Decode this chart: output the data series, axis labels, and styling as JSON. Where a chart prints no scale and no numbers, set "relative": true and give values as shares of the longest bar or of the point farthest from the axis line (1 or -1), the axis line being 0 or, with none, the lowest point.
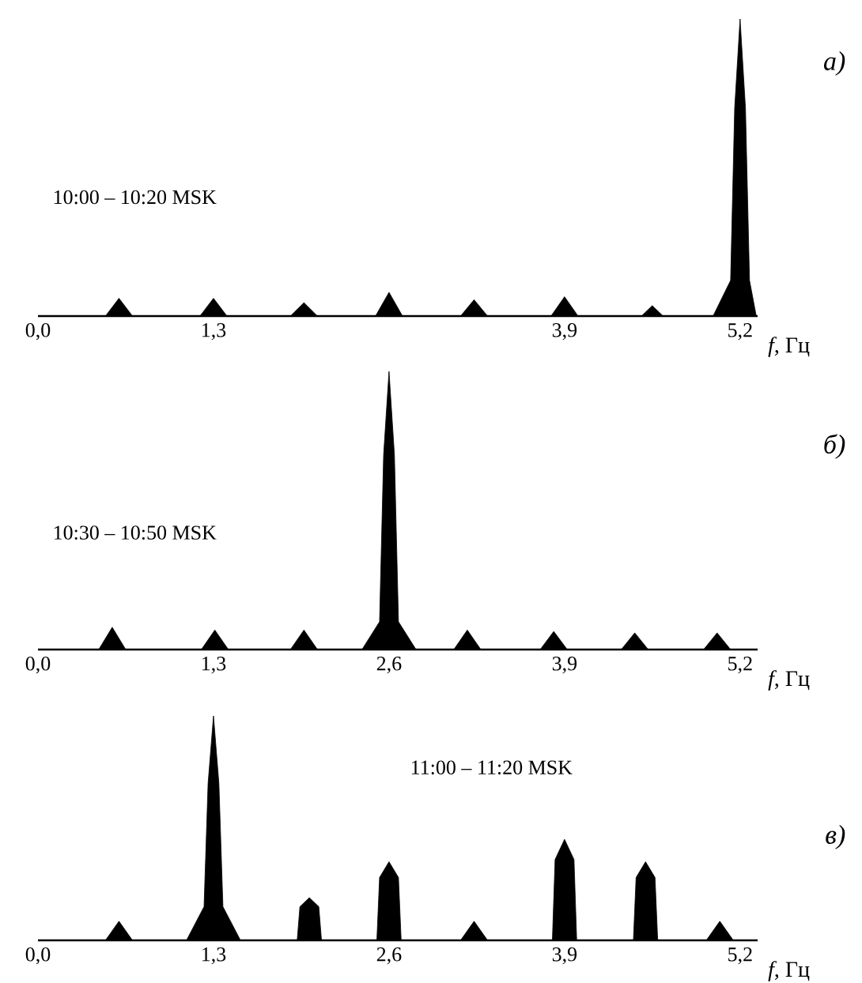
{
  "chart_data": [
    {
      "type": "area",
      "xlabel": "*f*, Гц",
      "annotations": [
        "10:00 – 10:20 MSK",
        "*а)*"
      ],
      "color": "#000000",
      "relative": true,
      "xlim": [
        0,
        5.33
      ],
      "xticks": [
        {
          "value": 0,
          "label": "0,0"
        },
        {
          "value": 1.3,
          "label": "1,3"
        },
        {
          "value": 3.9,
          "label": "3,9"
        },
        {
          "value": 5.2,
          "label": "5,2"
        }
      ],
      "x": [
        0,
        0.5,
        0.6,
        0.7,
        1.2,
        1.3,
        1.4,
        1.87,
        1.97,
        2.07,
        2.5,
        2.6,
        2.7,
        3.13,
        3.23,
        3.33,
        3.8,
        3.9,
        4.0,
        4.47,
        4.55,
        4.63,
        5.0,
        5.13,
        5.16,
        5.2,
        5.24,
        5.27,
        5.32
      ],
      "values": [
        0,
        0,
        0.06,
        0,
        0,
        0.06,
        0,
        0,
        0.045,
        0,
        0,
        0.08,
        0,
        0,
        0.055,
        0,
        0,
        0.065,
        0,
        0,
        0.035,
        0,
        0,
        0.12,
        0.7,
        1,
        0.7,
        0.12,
        0
      ]
    },
    {
      "type": "area",
      "xlabel": "*f*, Гц",
      "annotations": [
        "10:30 – 10:50 MSK",
        "*б)*"
      ],
      "color": "#000000",
      "relative": true,
      "xlim": [
        0,
        5.33
      ],
      "xticks": [
        {
          "value": 0,
          "label": "0,0"
        },
        {
          "value": 1.3,
          "label": "1,3"
        },
        {
          "value": 2.6,
          "label": "2,6"
        },
        {
          "value": 3.9,
          "label": "3,9"
        },
        {
          "value": 5.2,
          "label": "5,2"
        }
      ],
      "x": [
        0,
        0.45,
        0.55,
        0.65,
        1.21,
        1.31,
        1.41,
        1.87,
        1.97,
        2.07,
        2.4,
        2.53,
        2.56,
        2.6,
        2.64,
        2.67,
        2.8,
        3.08,
        3.18,
        3.28,
        3.72,
        3.82,
        3.92,
        4.32,
        4.42,
        4.52,
        4.93,
        5.03,
        5.13,
        5.32
      ],
      "values": [
        0,
        0,
        0.08,
        0,
        0,
        0.07,
        0,
        0,
        0.07,
        0,
        0,
        0.1,
        0.7,
        1,
        0.7,
        0.1,
        0,
        0,
        0.07,
        0,
        0,
        0.065,
        0,
        0,
        0.06,
        0,
        0,
        0.06,
        0,
        0
      ]
    },
    {
      "type": "area",
      "xlabel": "*f*, Гц",
      "annotations": [
        "11:00 – 11:20 MSK",
        "*в)*"
      ],
      "color": "#000000",
      "relative": true,
      "xlim": [
        0,
        5.33
      ],
      "xticks": [
        {
          "value": 0,
          "label": "0,0"
        },
        {
          "value": 1.3,
          "label": "1,3"
        },
        {
          "value": 2.6,
          "label": "2,6"
        },
        {
          "value": 3.9,
          "label": "3,9"
        },
        {
          "value": 5.2,
          "label": "5,2"
        }
      ],
      "x": [
        0,
        0.5,
        0.6,
        0.7,
        1.1,
        1.23,
        1.26,
        1.3,
        1.34,
        1.37,
        1.5,
        1.92,
        1.94,
        2.01,
        2.08,
        2.1,
        2.51,
        2.53,
        2.6,
        2.67,
        2.69,
        3.13,
        3.23,
        3.33,
        3.81,
        3.83,
        3.9,
        3.97,
        3.99,
        4.41,
        4.43,
        4.5,
        4.57,
        4.59,
        4.95,
        5.05,
        5.15,
        5.32
      ],
      "values": [
        0,
        0,
        0.085,
        0,
        0,
        0.15,
        0.7,
        1,
        0.7,
        0.15,
        0,
        0,
        0.15,
        0.19,
        0.15,
        0,
        0,
        0.28,
        0.35,
        0.28,
        0,
        0,
        0.085,
        0,
        0,
        0.36,
        0.45,
        0.36,
        0,
        0,
        0.28,
        0.35,
        0.28,
        0,
        0,
        0.085,
        0,
        0
      ]
    }
  ]
}
